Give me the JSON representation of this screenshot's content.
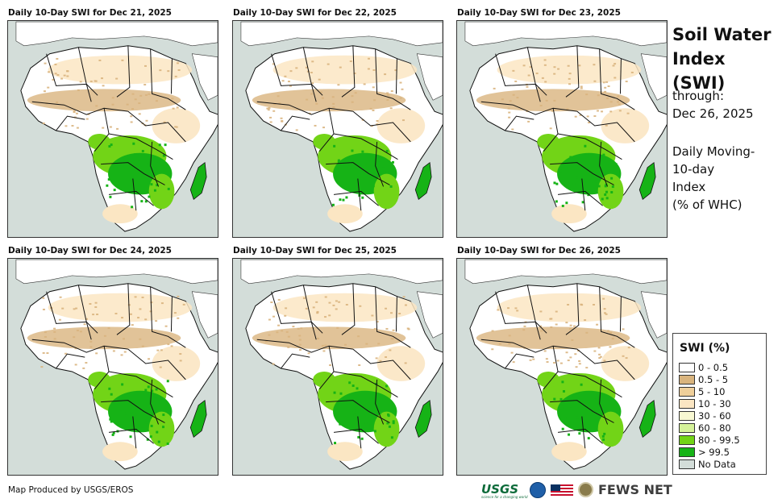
{
  "panels": [
    {
      "title": "Daily 10-Day SWI for Dec 21, 2025"
    },
    {
      "title": "Daily 10-Day SWI for Dec 22, 2025"
    },
    {
      "title": "Daily 10-Day SWI for Dec 23, 2025"
    },
    {
      "title": "Daily 10-Day SWI for Dec 24, 2025"
    },
    {
      "title": "Daily 10-Day SWI for Dec 25, 2025"
    },
    {
      "title": "Daily 10-Day SWI for Dec 26, 2025"
    }
  ],
  "sidebar": {
    "title_line1": "Soil Water",
    "title_line2": "Index (SWI)",
    "through_label": "through:",
    "through_date": "Dec 26, 2025",
    "desc_line1": "Daily Moving-",
    "desc_line2": "10-day",
    "desc_line3": "Index",
    "desc_line4": "(% of WHC)"
  },
  "legend": {
    "title": "SWI (%)",
    "items": [
      {
        "label": "0 - 0.5",
        "color": "#ffffff"
      },
      {
        "label": "0.5 - 5",
        "color": "#d9b47e"
      },
      {
        "label": "5 - 10",
        "color": "#efcf9a"
      },
      {
        "label": "10 - 30",
        "color": "#fbe6c3"
      },
      {
        "label": "30 - 60",
        "color": "#f8f8d2"
      },
      {
        "label": "60 - 80",
        "color": "#d5f29a"
      },
      {
        "label": "80 - 99.5",
        "color": "#72d417"
      },
      {
        "label": "> 99.5",
        "color": "#16b316"
      },
      {
        "label": "No Data",
        "color": "#d3ddd9"
      }
    ]
  },
  "footer": {
    "credit": "Map Produced by USGS/EROS",
    "usgs": "USGS",
    "usgs_tagline": "science for a changing world",
    "fews": "FEWS NET"
  },
  "colors": {
    "ocean": "#d3ddd9",
    "land_dry": "#ffffff",
    "dry_tan": "#d9b47e",
    "light_tan": "#fbe6c3",
    "wet": "#72d417",
    "saturated": "#16b316",
    "border": "#111111"
  }
}
